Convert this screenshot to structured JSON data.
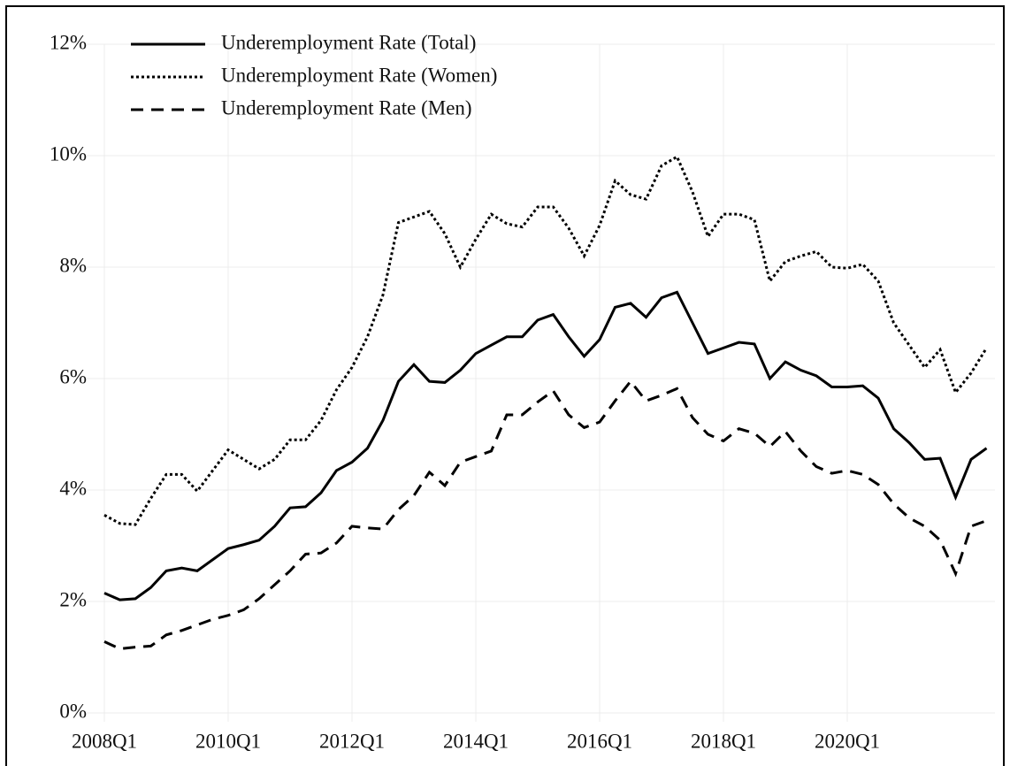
{
  "chart_data": {
    "type": "line",
    "categories": [
      "2008Q1",
      null,
      null,
      null,
      null,
      null,
      null,
      null,
      "2010Q1",
      null,
      null,
      null,
      null,
      null,
      null,
      null,
      "2012Q1",
      null,
      null,
      null,
      null,
      null,
      null,
      null,
      "2014Q1",
      null,
      null,
      null,
      null,
      null,
      null,
      null,
      "2016Q1",
      null,
      null,
      null,
      null,
      null,
      null,
      null,
      "2018Q1",
      null,
      null,
      null,
      null,
      null,
      null,
      null,
      "2020Q1",
      null,
      null,
      null,
      null,
      null,
      null,
      null,
      null,
      null
    ],
    "series": [
      {
        "name": "Underemployment Rate (Total)",
        "color": "#000000",
        "dash": "solid",
        "values": [
          2.15,
          2.03,
          2.05,
          2.25,
          2.55,
          2.6,
          2.55,
          2.75,
          2.95,
          3.02,
          3.1,
          3.35,
          3.68,
          3.7,
          3.95,
          4.35,
          4.5,
          4.75,
          5.25,
          5.95,
          6.25,
          5.95,
          5.93,
          6.15,
          6.45,
          6.6,
          6.75,
          6.75,
          7.05,
          7.15,
          6.75,
          6.4,
          6.7,
          7.28,
          7.35,
          7.1,
          7.45,
          7.55,
          7.0,
          6.45,
          6.55,
          6.65,
          6.62,
          6.0,
          6.3,
          6.15,
          6.05,
          5.85,
          5.85,
          5.87,
          5.65,
          5.1,
          4.85,
          4.55,
          4.57,
          3.87,
          4.55,
          4.75
        ]
      },
      {
        "name": "Underemployment Rate (Women)",
        "color": "#000000",
        "dash": "dotted",
        "values": [
          3.55,
          3.4,
          3.38,
          3.85,
          4.28,
          4.28,
          3.98,
          4.35,
          4.72,
          4.55,
          4.38,
          4.55,
          4.9,
          4.9,
          5.25,
          5.8,
          6.2,
          6.75,
          7.5,
          8.8,
          8.9,
          9.0,
          8.6,
          8.0,
          8.5,
          8.95,
          8.78,
          8.72,
          9.08,
          9.08,
          8.7,
          8.2,
          8.75,
          9.55,
          9.3,
          9.22,
          9.82,
          9.98,
          9.35,
          8.55,
          8.95,
          8.95,
          8.85,
          7.75,
          8.1,
          8.2,
          8.28,
          8.0,
          7.98,
          8.05,
          7.75,
          7.0,
          6.6,
          6.2,
          6.52,
          5.75,
          6.1,
          6.55
        ]
      },
      {
        "name": "Underemployment Rate (Men)",
        "color": "#000000",
        "dash": "dashed",
        "values": [
          1.28,
          1.15,
          1.18,
          1.2,
          1.4,
          1.48,
          1.58,
          1.68,
          1.75,
          1.85,
          2.05,
          2.3,
          2.55,
          2.85,
          2.87,
          3.05,
          3.35,
          3.32,
          3.3,
          3.65,
          3.9,
          4.32,
          4.08,
          4.5,
          4.6,
          4.7,
          5.35,
          5.35,
          5.58,
          5.78,
          5.35,
          5.12,
          5.22,
          5.6,
          5.95,
          5.6,
          5.7,
          5.82,
          5.3,
          5.0,
          4.88,
          5.1,
          5.02,
          4.78,
          5.05,
          4.7,
          4.42,
          4.3,
          4.35,
          4.28,
          4.1,
          3.75,
          3.5,
          3.35,
          3.1,
          2.5,
          3.35,
          3.45
        ]
      }
    ],
    "ylim": [
      0,
      12
    ],
    "yticks": [
      {
        "value": 0,
        "label": "0%"
      },
      {
        "value": 2,
        "label": "2%"
      },
      {
        "value": 4,
        "label": "4%"
      },
      {
        "value": 6,
        "label": "6%"
      },
      {
        "value": 8,
        "label": "8%"
      },
      {
        "value": 10,
        "label": "10%"
      },
      {
        "value": 12,
        "label": "12%"
      }
    ],
    "grid": true,
    "legend": "upper left"
  }
}
